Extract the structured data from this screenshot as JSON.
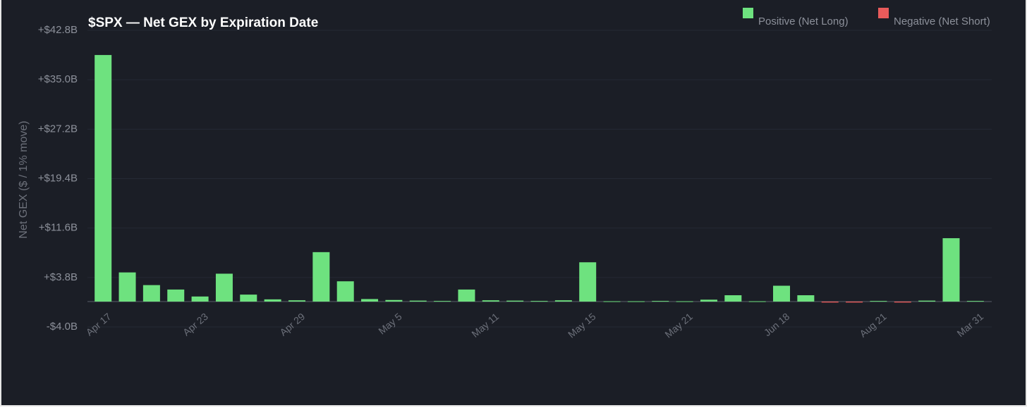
{
  "chart_data": {
    "type": "bar",
    "title": "$SPX — Net GEX by Expiration Date",
    "ylabel": "Net GEX ($ / 1% move)",
    "categories": [
      "Apr 17",
      null,
      null,
      null,
      "Apr 23",
      null,
      null,
      null,
      "Apr 29",
      null,
      null,
      null,
      "May 5",
      null,
      null,
      null,
      "May 11",
      null,
      null,
      null,
      "May 15",
      null,
      null,
      null,
      "May 21",
      null,
      null,
      null,
      "Jun 18",
      null,
      null,
      null,
      "Aug 21",
      null,
      null,
      null,
      "Mar 31"
    ],
    "values": [
      38.9,
      4.6,
      2.6,
      1.9,
      0.8,
      4.4,
      1.1,
      0.35,
      0.2,
      7.8,
      3.2,
      0.4,
      0.25,
      0.15,
      0.1,
      1.9,
      0.2,
      0.15,
      0.1,
      0.2,
      6.2,
      0.05,
      0.05,
      0.1,
      0.05,
      0.3,
      1.0,
      0.05,
      2.5,
      1.0,
      -0.15,
      -0.15,
      0.1,
      -0.15,
      0.15,
      10.0,
      0.1
    ],
    "legend": [
      {
        "name": "Positive (Net Long)",
        "color": "#6ee27f"
      },
      {
        "name": "Negative (Net Short)",
        "color": "#e85b5b"
      }
    ],
    "ylim": [
      -4.0,
      42.8
    ],
    "yticks": [
      {
        "value": -4.0,
        "label": "-$4.0B"
      },
      {
        "value": 3.8,
        "label": "+$3.8B"
      },
      {
        "value": 11.6,
        "label": "+$11.6B"
      },
      {
        "value": 19.4,
        "label": "+$19.4B"
      },
      {
        "value": 27.2,
        "label": "+$27.2B"
      },
      {
        "value": 35.0,
        "label": "+$35.0B"
      },
      {
        "value": 42.8,
        "label": "+$42.8B"
      }
    ],
    "grid": true
  }
}
